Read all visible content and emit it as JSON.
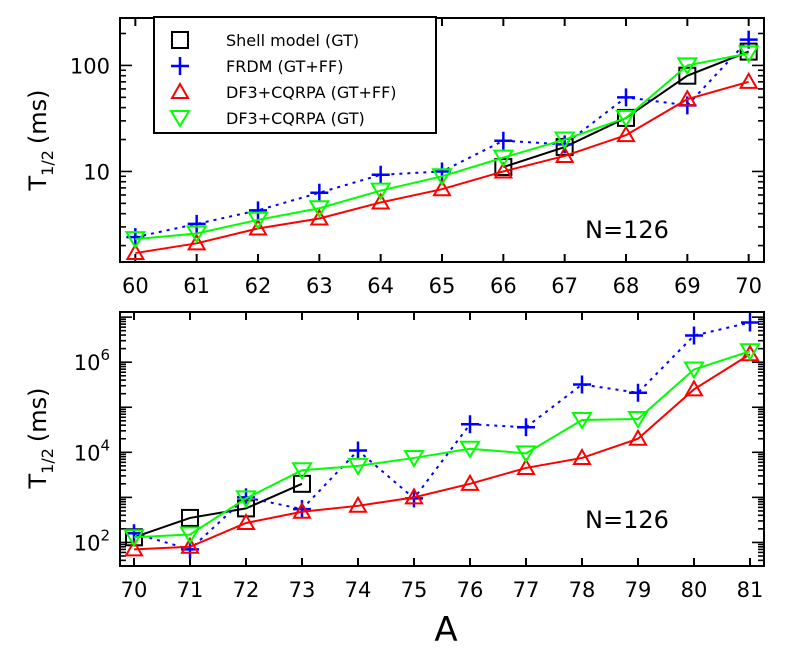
{
  "styles": {
    "Shell model (GT)": {
      "color": "#000000",
      "marker": "square",
      "dash": ""
    },
    "FRDM (GT+FF)": {
      "color": "#0000ff",
      "marker": "plus",
      "dash": "3,5"
    },
    "DF3+CQRPA (GT+FF)": {
      "color": "#ff0000",
      "marker": "triangle-up",
      "dash": ""
    },
    "DF3+CQRPA (GT)": {
      "color": "#00ff00",
      "marker": "triangle-down",
      "dash": ""
    }
  },
  "chart_data": [
    {
      "type": "line",
      "xlabel": "",
      "ylabel_main": "T",
      "ylabel_sub": "1/2",
      "ylabel_unit": "(ms)",
      "yscale": "log",
      "xlim": [
        59.75,
        70.25
      ],
      "ylim": [
        1.4,
        280
      ],
      "xticks": [
        "60",
        "61",
        "62",
        "63",
        "64",
        "65",
        "66",
        "67",
        "68",
        "69",
        "70"
      ],
      "yticks": [
        {
          "value": 10,
          "label": "10"
        },
        {
          "value": 100,
          "label": "100"
        }
      ],
      "annotation": "N=126",
      "legend": {
        "position": "top-left",
        "entries": [
          "Shell model (GT)",
          "FRDM (GT+FF)",
          "DF3+CQRPA (GT+FF)",
          "DF3+CQRPA (GT)"
        ]
      },
      "series": [
        {
          "name": "Shell model (GT)",
          "x": [
            66,
            67,
            68,
            69,
            70
          ],
          "y": [
            11,
            17,
            32,
            80,
            135
          ]
        },
        {
          "name": "FRDM (GT+FF)",
          "x": [
            60,
            61,
            62,
            63,
            64,
            65,
            66,
            67,
            68,
            69,
            70
          ],
          "y": [
            2.4,
            3.2,
            4.3,
            6.3,
            9.3,
            10,
            19.5,
            18,
            50,
            42,
            175
          ]
        },
        {
          "name": "DF3+CQRPA (GT+FF)",
          "x": [
            60,
            61,
            62,
            63,
            64,
            65,
            66,
            67,
            68,
            69,
            70
          ],
          "y": [
            1.7,
            2.1,
            2.9,
            3.6,
            5.1,
            6.8,
            10,
            14,
            22,
            48,
            70
          ]
        },
        {
          "name": "DF3+CQRPA (GT)",
          "x": [
            60,
            61,
            62,
            63,
            64,
            65,
            66,
            67,
            68,
            69,
            70
          ],
          "y": [
            2.3,
            2.6,
            3.5,
            4.5,
            6.6,
            9,
            13.5,
            20,
            32,
            100,
            130
          ]
        }
      ]
    },
    {
      "type": "line",
      "xlabel": "A",
      "ylabel_main": "T",
      "ylabel_sub": "1/2",
      "ylabel_unit": "(ms)",
      "yscale": "log",
      "xlim": [
        69.75,
        81.25
      ],
      "ylim": [
        30,
        13000000
      ],
      "xticks": [
        "70",
        "71",
        "72",
        "73",
        "74",
        "75",
        "76",
        "77",
        "78",
        "79",
        "80",
        "81"
      ],
      "yticks": [
        {
          "value": 100,
          "label": "10",
          "exp": "2"
        },
        {
          "value": 10000,
          "label": "10",
          "exp": "4"
        },
        {
          "value": 1000000,
          "label": "10",
          "exp": "6"
        }
      ],
      "annotation": "N=126",
      "series": [
        {
          "name": "Shell model (GT)",
          "x": [
            70,
            71,
            72,
            73
          ],
          "y": [
            130,
            350,
            570,
            2000
          ]
        },
        {
          "name": "FRDM (GT+FF)",
          "x": [
            70,
            71,
            72,
            73,
            74,
            75,
            76,
            77,
            78,
            79,
            80,
            81
          ],
          "y": [
            160,
            70,
            1000,
            550,
            11000,
            950,
            42000,
            36000,
            320000,
            210000,
            3900000,
            7600000
          ]
        },
        {
          "name": "DF3+CQRPA (GT+FF)",
          "x": [
            70,
            71,
            72,
            73,
            74,
            75,
            76,
            77,
            78,
            79,
            80,
            81
          ],
          "y": [
            70,
            80,
            270,
            480,
            650,
            1000,
            2000,
            4500,
            7500,
            20000,
            250000,
            1500000
          ]
        },
        {
          "name": "DF3+CQRPA (GT)",
          "x": [
            70,
            71,
            72,
            73,
            74,
            75,
            76,
            77,
            78,
            79,
            80,
            81
          ],
          "y": [
            130,
            150,
            950,
            4000,
            5000,
            7500,
            12000,
            9500,
            52000,
            55000,
            690000,
            1750000
          ]
        }
      ]
    }
  ]
}
